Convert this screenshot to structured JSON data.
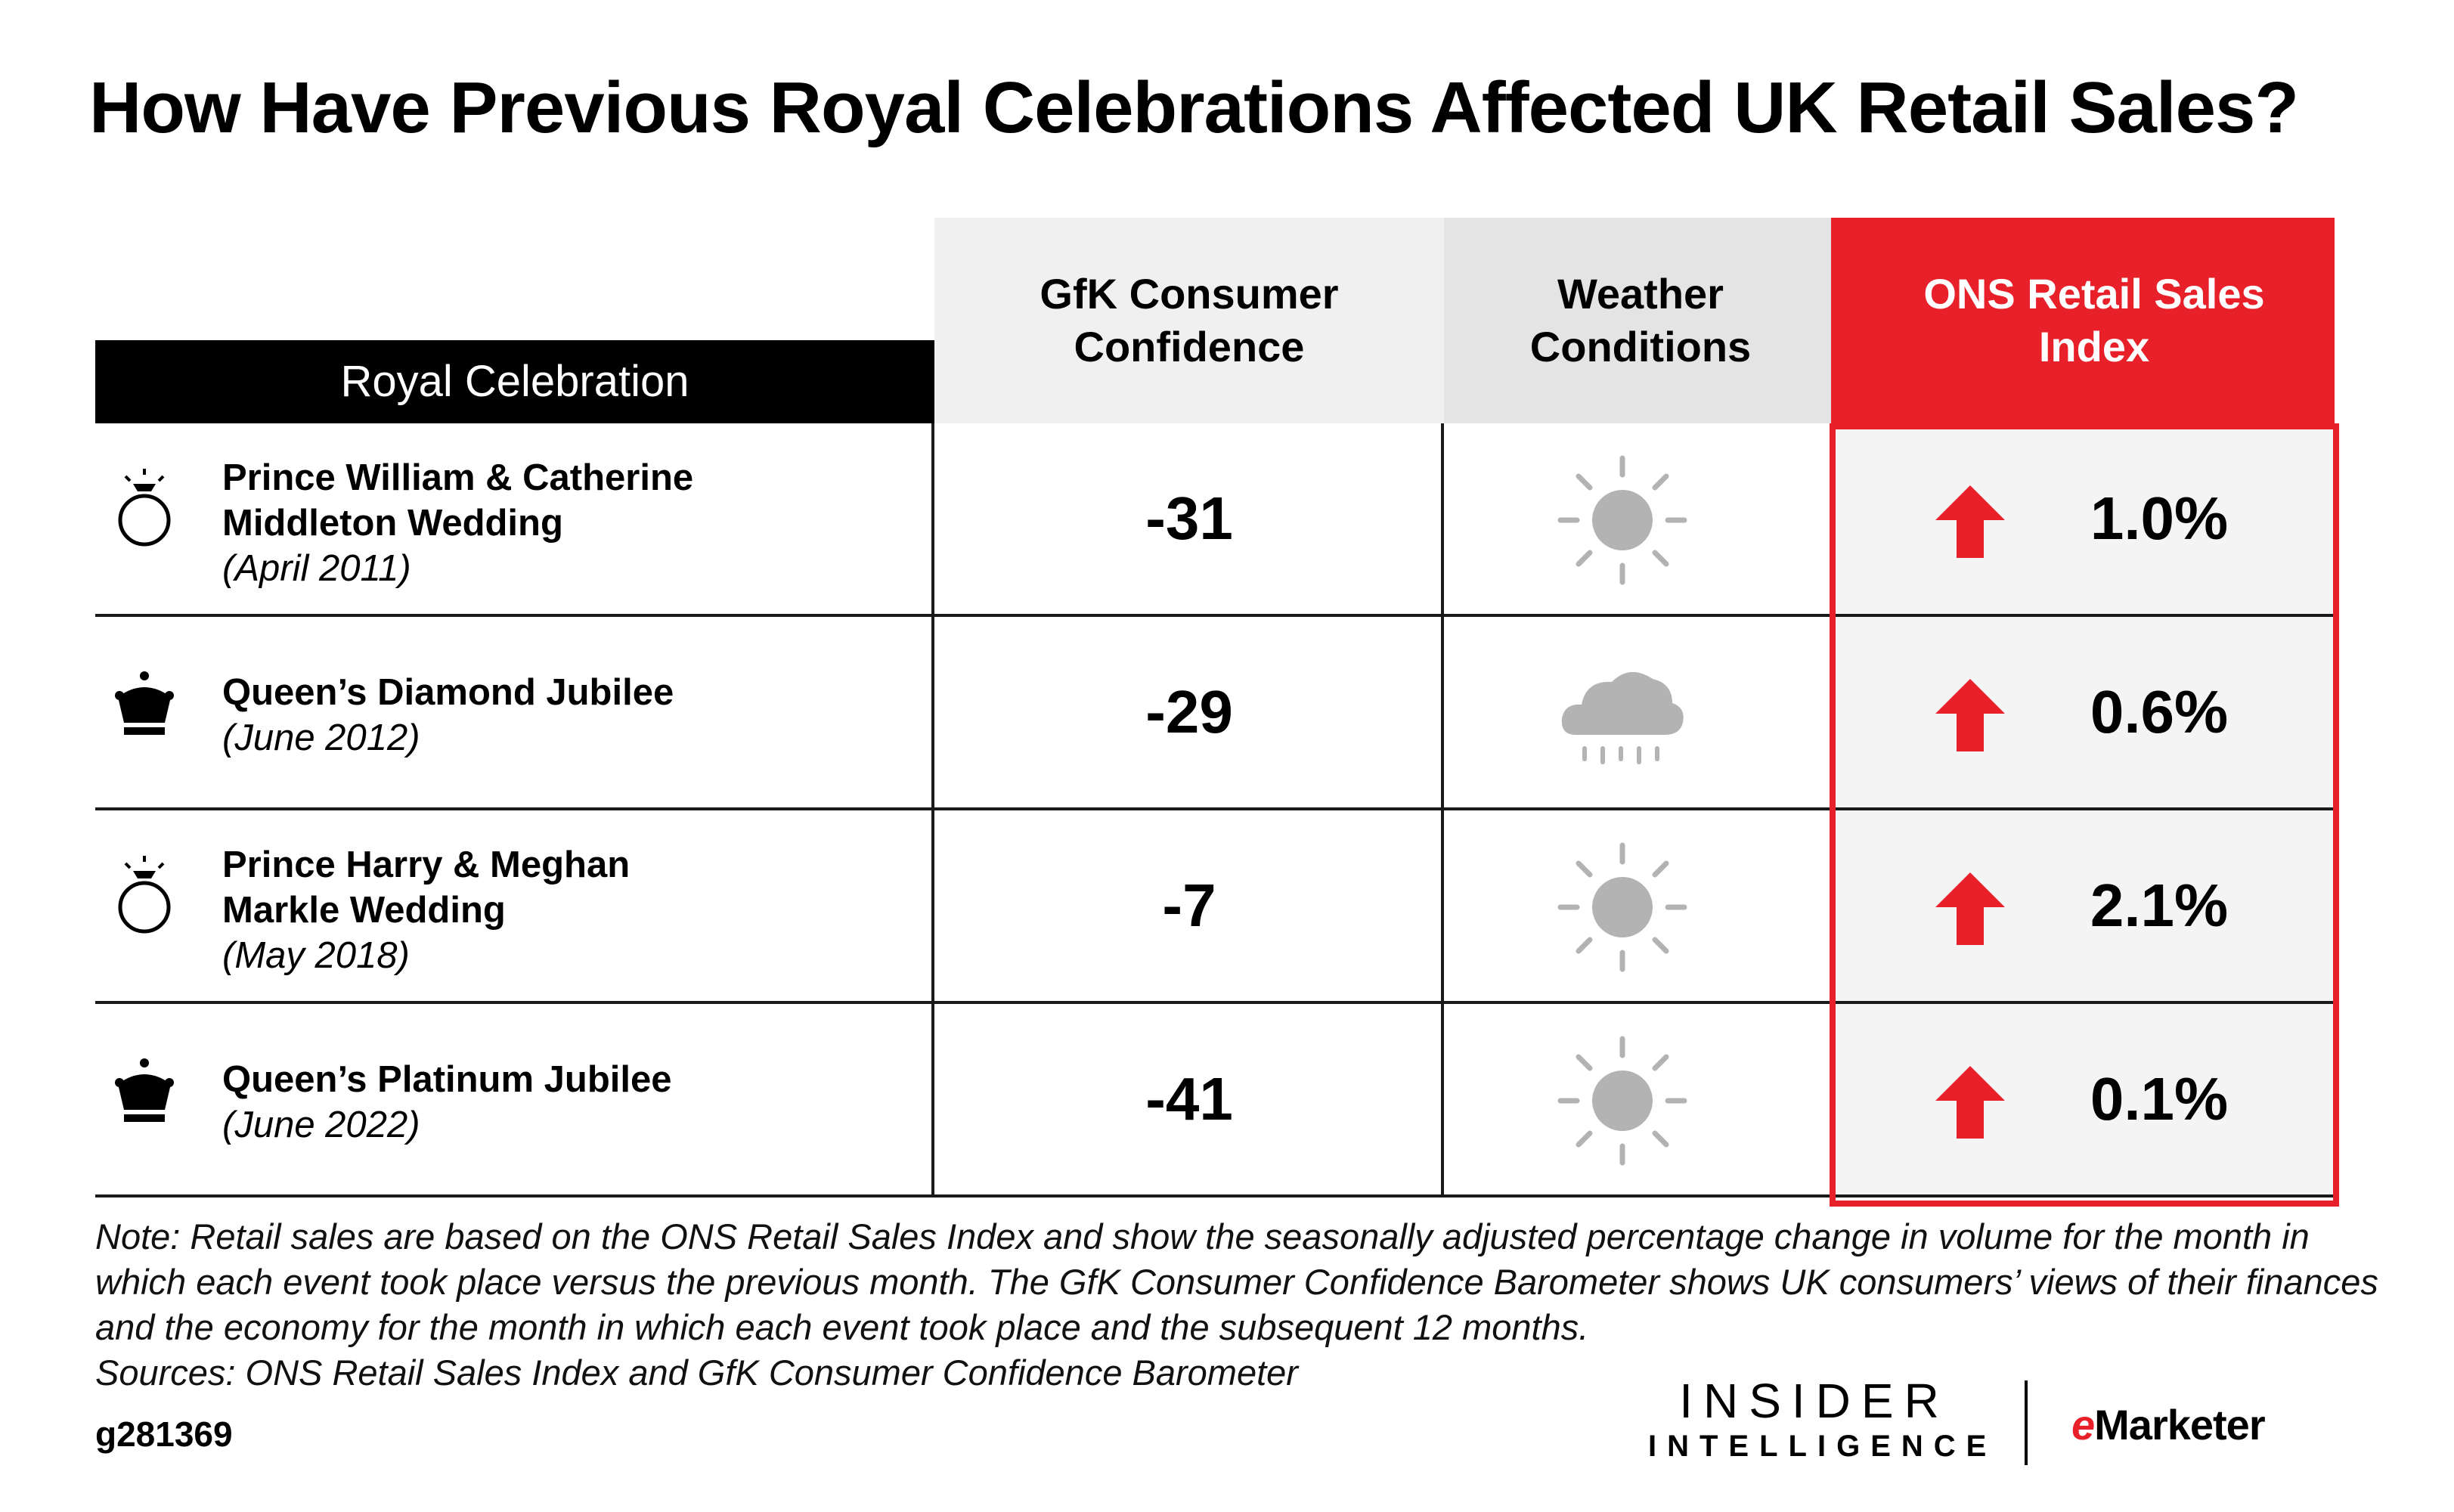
{
  "title": "How Have Previous Royal Celebrations Affected UK Retail Sales?",
  "columns": {
    "celebration": "Royal Celebration",
    "gfk": "GfK Consumer Confidence",
    "weather": "Weather Conditions",
    "ons": "ONS Retail Sales Index"
  },
  "rows": [
    {
      "name_line1": "Prince William & Catherine",
      "name_line2": "Middleton Wedding",
      "date": "(April 2011)",
      "icon": "ring-icon",
      "gfk": "-31",
      "weather": "sun-icon",
      "ons": "1.0%"
    },
    {
      "name_line1": "Queen’s Diamond Jubilee",
      "name_line2": "",
      "date": "(June 2012)",
      "icon": "crown-icon",
      "gfk": "-29",
      "weather": "rain-cloud-icon",
      "ons": "0.6%"
    },
    {
      "name_line1": "Prince Harry & Meghan",
      "name_line2": "Markle Wedding",
      "date": "(May 2018)",
      "icon": "ring-icon",
      "gfk": "-7",
      "weather": "sun-icon",
      "ons": "2.1%"
    },
    {
      "name_line1": "Queen’s Platinum Jubilee",
      "name_line2": "",
      "date": "(June 2022)",
      "icon": "crown-icon",
      "gfk": "-41",
      "weather": "sun-icon",
      "ons": "0.1%"
    }
  ],
  "chart_data": {
    "type": "table",
    "title": "How Have Previous Royal Celebrations Affected UK Retail Sales?",
    "columns": [
      "Royal Celebration",
      "GfK Consumer Confidence",
      "Weather Conditions",
      "ONS Retail Sales Index"
    ],
    "rows": [
      [
        "Prince William & Catherine Middleton Wedding (April 2011)",
        -31,
        "sunny",
        1.0
      ],
      [
        "Queen’s Diamond Jubilee (June 2012)",
        -29,
        "rainy",
        0.6
      ],
      [
        "Prince Harry & Meghan Markle Wedding (May 2018)",
        -7,
        "sunny",
        2.1
      ],
      [
        "Queen’s Platinum Jubilee (June 2022)",
        -41,
        "sunny",
        0.1
      ]
    ]
  },
  "note": "Note: Retail sales are based on the ONS Retail Sales Index and show the seasonally adjusted percentage change in volume for the month in which each event took place versus the previous month. The GfK Consumer Confidence Barometer shows UK consumers’ views of their finances and the economy for the month in which each event took place and the subsequent 12 months.",
  "sources": "Sources: ONS Retail Sales Index and GfK Consumer Confidence Barometer",
  "chart_id": "g281369",
  "logo": {
    "insider_line1": "INSIDER",
    "insider_line2": "INTELLIGENCE",
    "emarketer_e": "e",
    "emarketer_rest": "Marketer"
  },
  "colors": {
    "accent": "#e8202a",
    "icon_gray": "#b3b3b3",
    "header_gray_1": "#f0f0f0",
    "header_gray_2": "#e4e4e4"
  }
}
